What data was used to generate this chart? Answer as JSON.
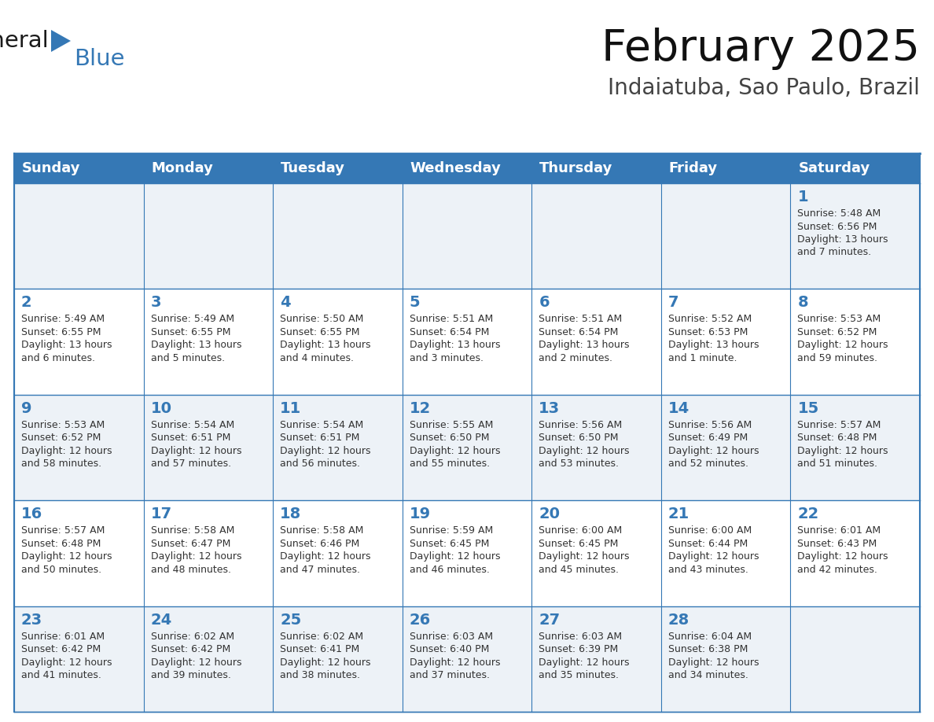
{
  "title": "February 2025",
  "subtitle": "Indaiatuba, Sao Paulo, Brazil",
  "header_bg": "#3578b5",
  "header_text_color": "#ffffff",
  "day_names": [
    "Sunday",
    "Monday",
    "Tuesday",
    "Wednesday",
    "Thursday",
    "Friday",
    "Saturday"
  ],
  "cell_bg_odd": "#edf2f7",
  "cell_bg_even": "#ffffff",
  "border_color": "#3578b5",
  "date_color": "#3578b5",
  "text_color": "#333333",
  "logo_text_color": "#1a1a1a",
  "logo_blue_color": "#3578b5",
  "calendar_data": [
    [
      null,
      null,
      null,
      null,
      null,
      null,
      {
        "day": 1,
        "sunrise": "5:48 AM",
        "sunset": "6:56 PM",
        "daylight": "13 hours",
        "daylight2": "and 7 minutes."
      }
    ],
    [
      {
        "day": 2,
        "sunrise": "5:49 AM",
        "sunset": "6:55 PM",
        "daylight": "13 hours",
        "daylight2": "and 6 minutes."
      },
      {
        "day": 3,
        "sunrise": "5:49 AM",
        "sunset": "6:55 PM",
        "daylight": "13 hours",
        "daylight2": "and 5 minutes."
      },
      {
        "day": 4,
        "sunrise": "5:50 AM",
        "sunset": "6:55 PM",
        "daylight": "13 hours",
        "daylight2": "and 4 minutes."
      },
      {
        "day": 5,
        "sunrise": "5:51 AM",
        "sunset": "6:54 PM",
        "daylight": "13 hours",
        "daylight2": "and 3 minutes."
      },
      {
        "day": 6,
        "sunrise": "5:51 AM",
        "sunset": "6:54 PM",
        "daylight": "13 hours",
        "daylight2": "and 2 minutes."
      },
      {
        "day": 7,
        "sunrise": "5:52 AM",
        "sunset": "6:53 PM",
        "daylight": "13 hours",
        "daylight2": "and 1 minute."
      },
      {
        "day": 8,
        "sunrise": "5:53 AM",
        "sunset": "6:52 PM",
        "daylight": "12 hours",
        "daylight2": "and 59 minutes."
      }
    ],
    [
      {
        "day": 9,
        "sunrise": "5:53 AM",
        "sunset": "6:52 PM",
        "daylight": "12 hours",
        "daylight2": "and 58 minutes."
      },
      {
        "day": 10,
        "sunrise": "5:54 AM",
        "sunset": "6:51 PM",
        "daylight": "12 hours",
        "daylight2": "and 57 minutes."
      },
      {
        "day": 11,
        "sunrise": "5:54 AM",
        "sunset": "6:51 PM",
        "daylight": "12 hours",
        "daylight2": "and 56 minutes."
      },
      {
        "day": 12,
        "sunrise": "5:55 AM",
        "sunset": "6:50 PM",
        "daylight": "12 hours",
        "daylight2": "and 55 minutes."
      },
      {
        "day": 13,
        "sunrise": "5:56 AM",
        "sunset": "6:50 PM",
        "daylight": "12 hours",
        "daylight2": "and 53 minutes."
      },
      {
        "day": 14,
        "sunrise": "5:56 AM",
        "sunset": "6:49 PM",
        "daylight": "12 hours",
        "daylight2": "and 52 minutes."
      },
      {
        "day": 15,
        "sunrise": "5:57 AM",
        "sunset": "6:48 PM",
        "daylight": "12 hours",
        "daylight2": "and 51 minutes."
      }
    ],
    [
      {
        "day": 16,
        "sunrise": "5:57 AM",
        "sunset": "6:48 PM",
        "daylight": "12 hours",
        "daylight2": "and 50 minutes."
      },
      {
        "day": 17,
        "sunrise": "5:58 AM",
        "sunset": "6:47 PM",
        "daylight": "12 hours",
        "daylight2": "and 48 minutes."
      },
      {
        "day": 18,
        "sunrise": "5:58 AM",
        "sunset": "6:46 PM",
        "daylight": "12 hours",
        "daylight2": "and 47 minutes."
      },
      {
        "day": 19,
        "sunrise": "5:59 AM",
        "sunset": "6:45 PM",
        "daylight": "12 hours",
        "daylight2": "and 46 minutes."
      },
      {
        "day": 20,
        "sunrise": "6:00 AM",
        "sunset": "6:45 PM",
        "daylight": "12 hours",
        "daylight2": "and 45 minutes."
      },
      {
        "day": 21,
        "sunrise": "6:00 AM",
        "sunset": "6:44 PM",
        "daylight": "12 hours",
        "daylight2": "and 43 minutes."
      },
      {
        "day": 22,
        "sunrise": "6:01 AM",
        "sunset": "6:43 PM",
        "daylight": "12 hours",
        "daylight2": "and 42 minutes."
      }
    ],
    [
      {
        "day": 23,
        "sunrise": "6:01 AM",
        "sunset": "6:42 PM",
        "daylight": "12 hours",
        "daylight2": "and 41 minutes."
      },
      {
        "day": 24,
        "sunrise": "6:02 AM",
        "sunset": "6:42 PM",
        "daylight": "12 hours",
        "daylight2": "and 39 minutes."
      },
      {
        "day": 25,
        "sunrise": "6:02 AM",
        "sunset": "6:41 PM",
        "daylight": "12 hours",
        "daylight2": "and 38 minutes."
      },
      {
        "day": 26,
        "sunrise": "6:03 AM",
        "sunset": "6:40 PM",
        "daylight": "12 hours",
        "daylight2": "and 37 minutes."
      },
      {
        "day": 27,
        "sunrise": "6:03 AM",
        "sunset": "6:39 PM",
        "daylight": "12 hours",
        "daylight2": "and 35 minutes."
      },
      {
        "day": 28,
        "sunrise": "6:04 AM",
        "sunset": "6:38 PM",
        "daylight": "12 hours",
        "daylight2": "and 34 minutes."
      },
      null
    ]
  ]
}
